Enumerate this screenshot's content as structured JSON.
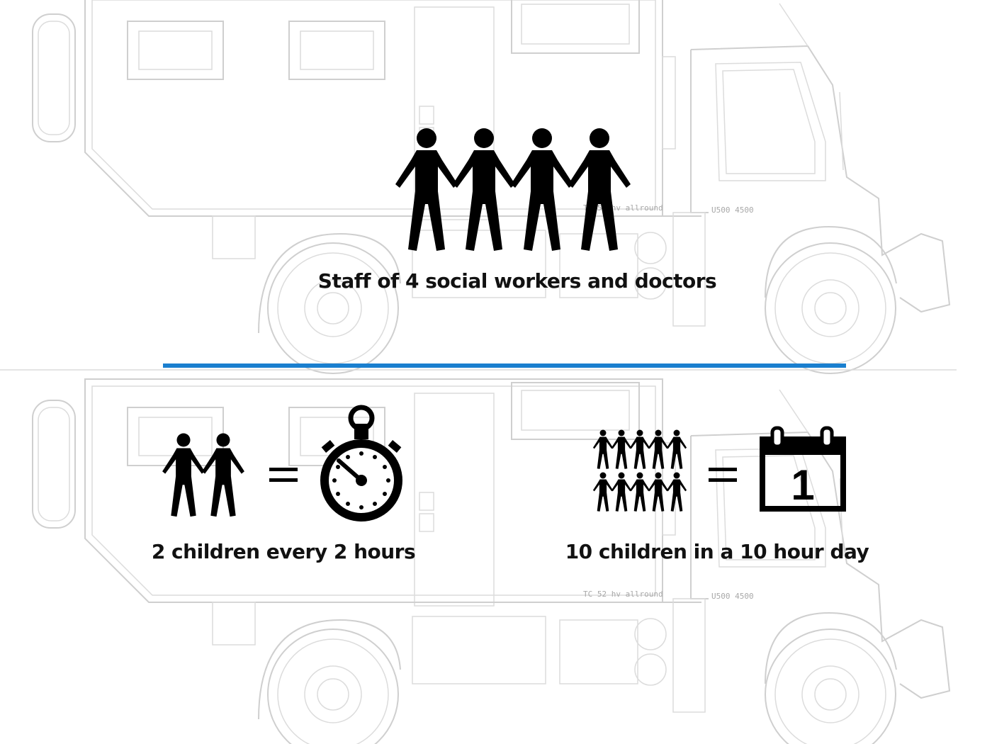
{
  "top_section": {
    "caption": "Staff of 4 social workers and doctors",
    "people_count": 4
  },
  "divider": {
    "color": "#1a7fcf"
  },
  "bottom_left": {
    "caption": "2 children every 2 hours",
    "people_count": 2,
    "equals": "=",
    "icon": "stopwatch-icon"
  },
  "bottom_right": {
    "caption": "10 children in a 10 hour day",
    "people_count": 10,
    "equals": "=",
    "icon": "calendar-icon",
    "calendar_day": "1"
  },
  "truck": {
    "body_label": "TC 52 hv allround",
    "cab_label": "U500 4500"
  }
}
